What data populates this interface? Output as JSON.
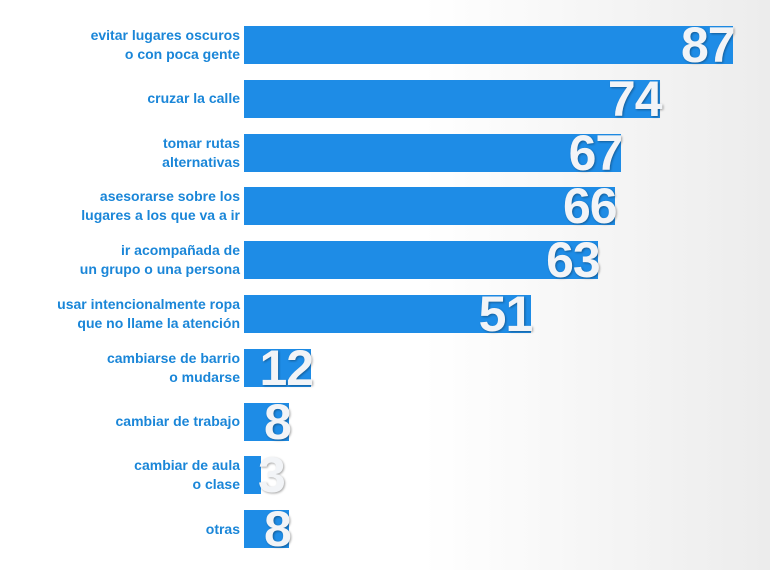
{
  "chart_data": {
    "type": "bar",
    "orientation": "horizontal",
    "categories": [
      "evitar lugares oscuros\no con poca gente",
      "cruzar la calle",
      "tomar rutas\nalternativas",
      "asesorarse sobre los\nlugares a los que va a ir",
      "ir acompañada de\nun grupo o una persona",
      "usar intencionalmente ropa\nque no llame la atención",
      "cambiarse de barrio\no mudarse",
      "cambiar de trabajo",
      "cambiar de aula\no clase",
      "otras"
    ],
    "values": [
      87,
      74,
      67,
      66,
      63,
      51,
      12,
      8,
      3,
      8
    ],
    "color": "#1e8ce6"
  }
}
